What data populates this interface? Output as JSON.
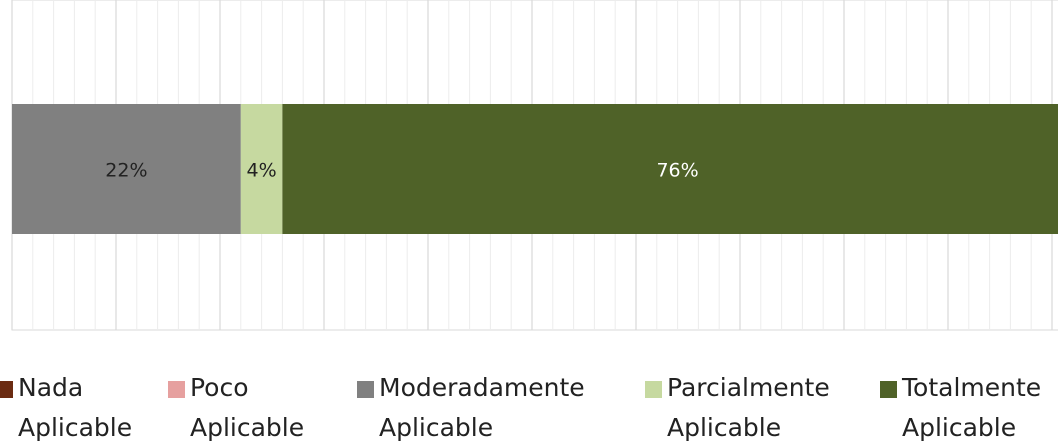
{
  "chart_data": {
    "type": "stacked_bar_horizontal",
    "series": [
      {
        "name": "Nada Aplicable",
        "color": "#6b2b12",
        "values": [
          0
        ],
        "value_labels": [
          null
        ]
      },
      {
        "name": "Poco Aplicable",
        "color": "#e6a09f",
        "values": [
          0
        ],
        "value_labels": [
          null
        ]
      },
      {
        "name": "Moderadamente Aplicable",
        "color": "#808080",
        "values": [
          22
        ],
        "value_labels": [
          "22%"
        ]
      },
      {
        "name": "Parcialmente Aplicable",
        "color": "#c6d9a0",
        "values": [
          4
        ],
        "value_labels": [
          "4%"
        ]
      },
      {
        "name": "Totalmente Aplicable",
        "color": "#4f6228",
        "values": [
          76
        ],
        "value_labels": [
          "76%"
        ]
      }
    ],
    "xlim": [
      0,
      100
    ],
    "xticks": [
      0,
      10,
      20,
      30,
      40,
      50,
      60,
      70,
      80,
      90,
      100
    ],
    "grid": true,
    "legend": "bottom"
  }
}
